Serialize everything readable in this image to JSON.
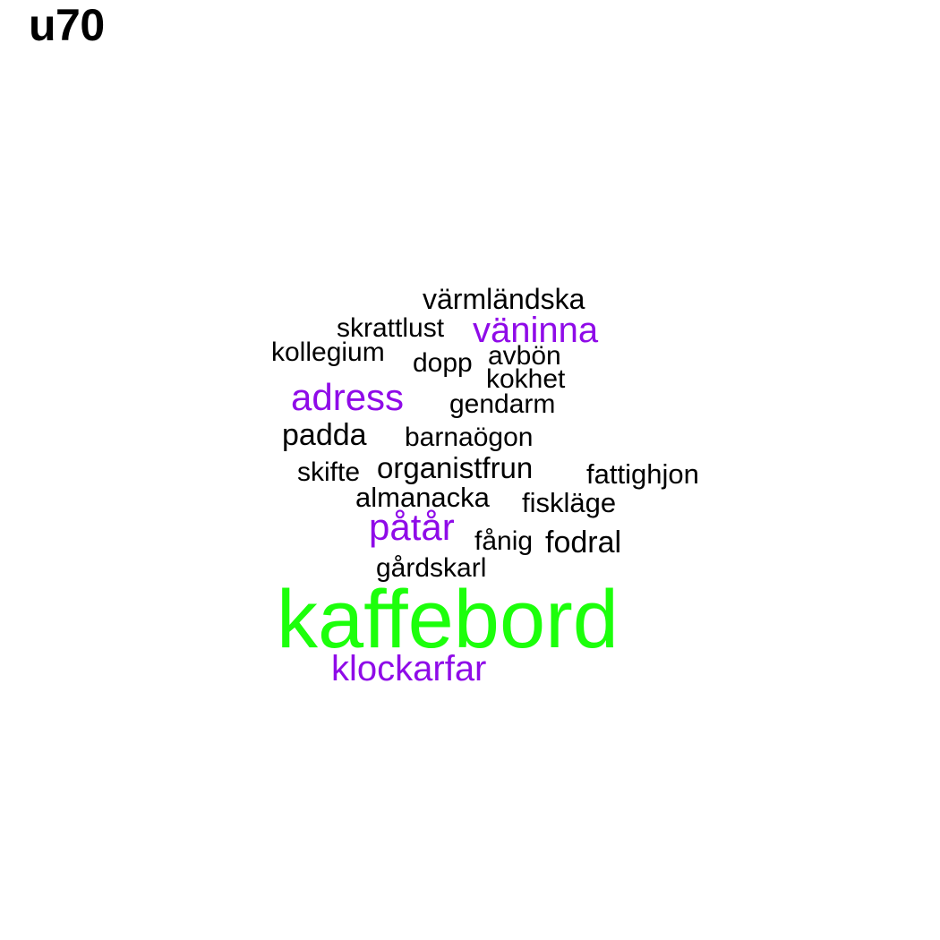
{
  "title": "u70",
  "colors": {
    "largest": "#1cff0b",
    "large": "#8f0be8",
    "default": "#000000"
  },
  "words": {
    "kaffebord": "kaffebord",
    "klockarfar": "klockarfar",
    "adress": "adress",
    "vaninna": "väninna",
    "patar": "påtår",
    "varmlandska": "värmländska",
    "skrattlust": "skrattlust",
    "kollegium": "kollegium",
    "dopp": "dopp",
    "avbon": "avbön",
    "kokhet": "kokhet",
    "gendarm": "gendarm",
    "padda": "padda",
    "barnaogon": "barnaögon",
    "skifte": "skifte",
    "organistfrun": "organistfrun",
    "fattighjon": "fattighjon",
    "almanacka": "almanacka",
    "fisklage": "fiskläge",
    "fanig": "fånig",
    "fodral": "fodral",
    "gardskarl": "gårdskarl"
  }
}
